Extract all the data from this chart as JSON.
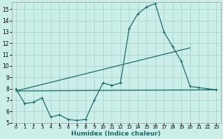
{
  "xlabel": "Humidex (Indice chaleur)",
  "background_color": "#cceee8",
  "grid_color": "#aad4cc",
  "line_color": "#1a6b6b",
  "xlim": [
    -0.5,
    23.5
  ],
  "ylim": [
    5,
    15.6
  ],
  "yticks": [
    5,
    6,
    7,
    8,
    9,
    10,
    11,
    12,
    13,
    14,
    15
  ],
  "xticks": [
    0,
    1,
    2,
    3,
    4,
    5,
    6,
    7,
    8,
    9,
    10,
    11,
    12,
    13,
    14,
    15,
    16,
    17,
    18,
    19,
    20,
    21,
    22,
    23
  ],
  "main_line": {
    "x": [
      0,
      1,
      2,
      3,
      4,
      5,
      6,
      7,
      8,
      9,
      10,
      11,
      12,
      13,
      14,
      15,
      16,
      17,
      18,
      19,
      20,
      21,
      22,
      23
    ],
    "y": [
      8.0,
      6.7,
      6.8,
      7.2,
      5.5,
      5.7,
      5.3,
      5.2,
      5.3,
      7.0,
      8.5,
      8.3,
      8.5,
      13.3,
      14.6,
      15.2,
      15.5,
      13.0,
      11.7,
      10.4,
      8.2,
      8.1,
      8.0,
      7.9
    ]
  },
  "line_flat": {
    "x": [
      0,
      23
    ],
    "y": [
      7.8,
      7.9
    ]
  },
  "line_rising": {
    "x": [
      0,
      20
    ],
    "y": [
      7.8,
      11.6
    ]
  }
}
